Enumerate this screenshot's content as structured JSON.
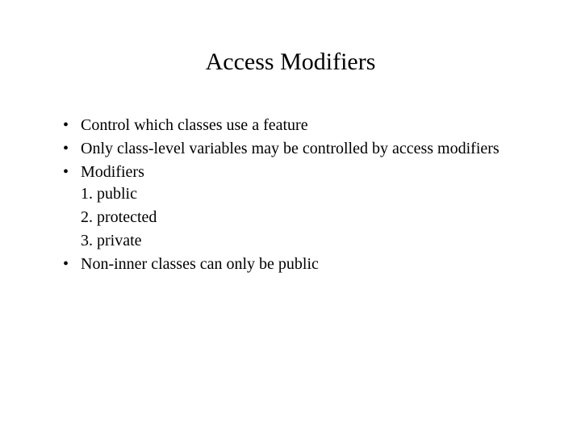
{
  "slide": {
    "title": "Access Modifiers",
    "bullets": [
      {
        "text": "Control which classes use a feature"
      },
      {
        "text": "Only class-level variables may be controlled by access modifiers"
      },
      {
        "text": "Modifiers",
        "subitems": [
          "1. public",
          "2. protected",
          "3. private"
        ]
      },
      {
        "text": "Non-inner classes can only be public"
      }
    ],
    "colors": {
      "background": "#ffffff",
      "text": "#000000"
    },
    "typography": {
      "title_fontsize": 30,
      "body_fontsize": 20,
      "font_family": "Times New Roman"
    }
  }
}
